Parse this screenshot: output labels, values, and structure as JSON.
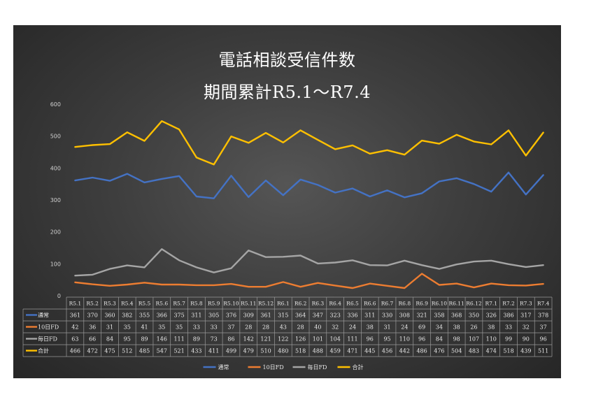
{
  "chart_data": {
    "type": "line",
    "title": "電話相談受信件数",
    "subtitle": "期間累計R5.1～R7.4",
    "categories": [
      "R5.1",
      "R5.2",
      "R5.3",
      "R5.4",
      "R5.5",
      "R5.6",
      "R5.7",
      "R5.8",
      "R5.9",
      "R5.10",
      "R5.11",
      "R5.12",
      "R6.1",
      "R6.2",
      "R6.3",
      "R6.4",
      "R6.5",
      "R6.6",
      "R6.7",
      "R6.8",
      "R6.9",
      "R6.10",
      "R6.11",
      "R6.12",
      "R7.1",
      "R7.2",
      "R7.3",
      "R7.4"
    ],
    "ylim": [
      0,
      600
    ],
    "yticks": [
      0,
      100,
      200,
      300,
      400,
      500,
      600
    ],
    "grid": false,
    "legend": "bottom",
    "data_table": true,
    "series": [
      {
        "name": "通常",
        "color": "#4472c4",
        "values": [
          361,
          370,
          360,
          382,
          355,
          366,
          375,
          311,
          305,
          376,
          309,
          361,
          315,
          364,
          347,
          323,
          336,
          311,
          330,
          308,
          321,
          358,
          368,
          350,
          326,
          386,
          317,
          378
        ]
      },
      {
        "name": "10日FD",
        "color": "#ed7d31",
        "values": [
          42,
          36,
          31,
          35,
          41,
          35,
          35,
          33,
          33,
          37,
          28,
          28,
          43,
          28,
          40,
          32,
          24,
          38,
          31,
          24,
          69,
          34,
          38,
          26,
          38,
          33,
          32,
          37
        ]
      },
      {
        "name": "毎日FD",
        "color": "#a5a5a5",
        "values": [
          63,
          66,
          84,
          95,
          89,
          146,
          111,
          89,
          73,
          86,
          142,
          121,
          122,
          126,
          101,
          104,
          111,
          96,
          95,
          110,
          96,
          84,
          98,
          107,
          110,
          99,
          90,
          96
        ]
      },
      {
        "name": "合計",
        "color": "#ffc000",
        "values": [
          466,
          472,
          475,
          512,
          485,
          547,
          521,
          433,
          411,
          499,
          479,
          510,
          480,
          518,
          488,
          459,
          471,
          445,
          456,
          442,
          486,
          476,
          504,
          483,
          474,
          518,
          439,
          511
        ]
      }
    ]
  }
}
